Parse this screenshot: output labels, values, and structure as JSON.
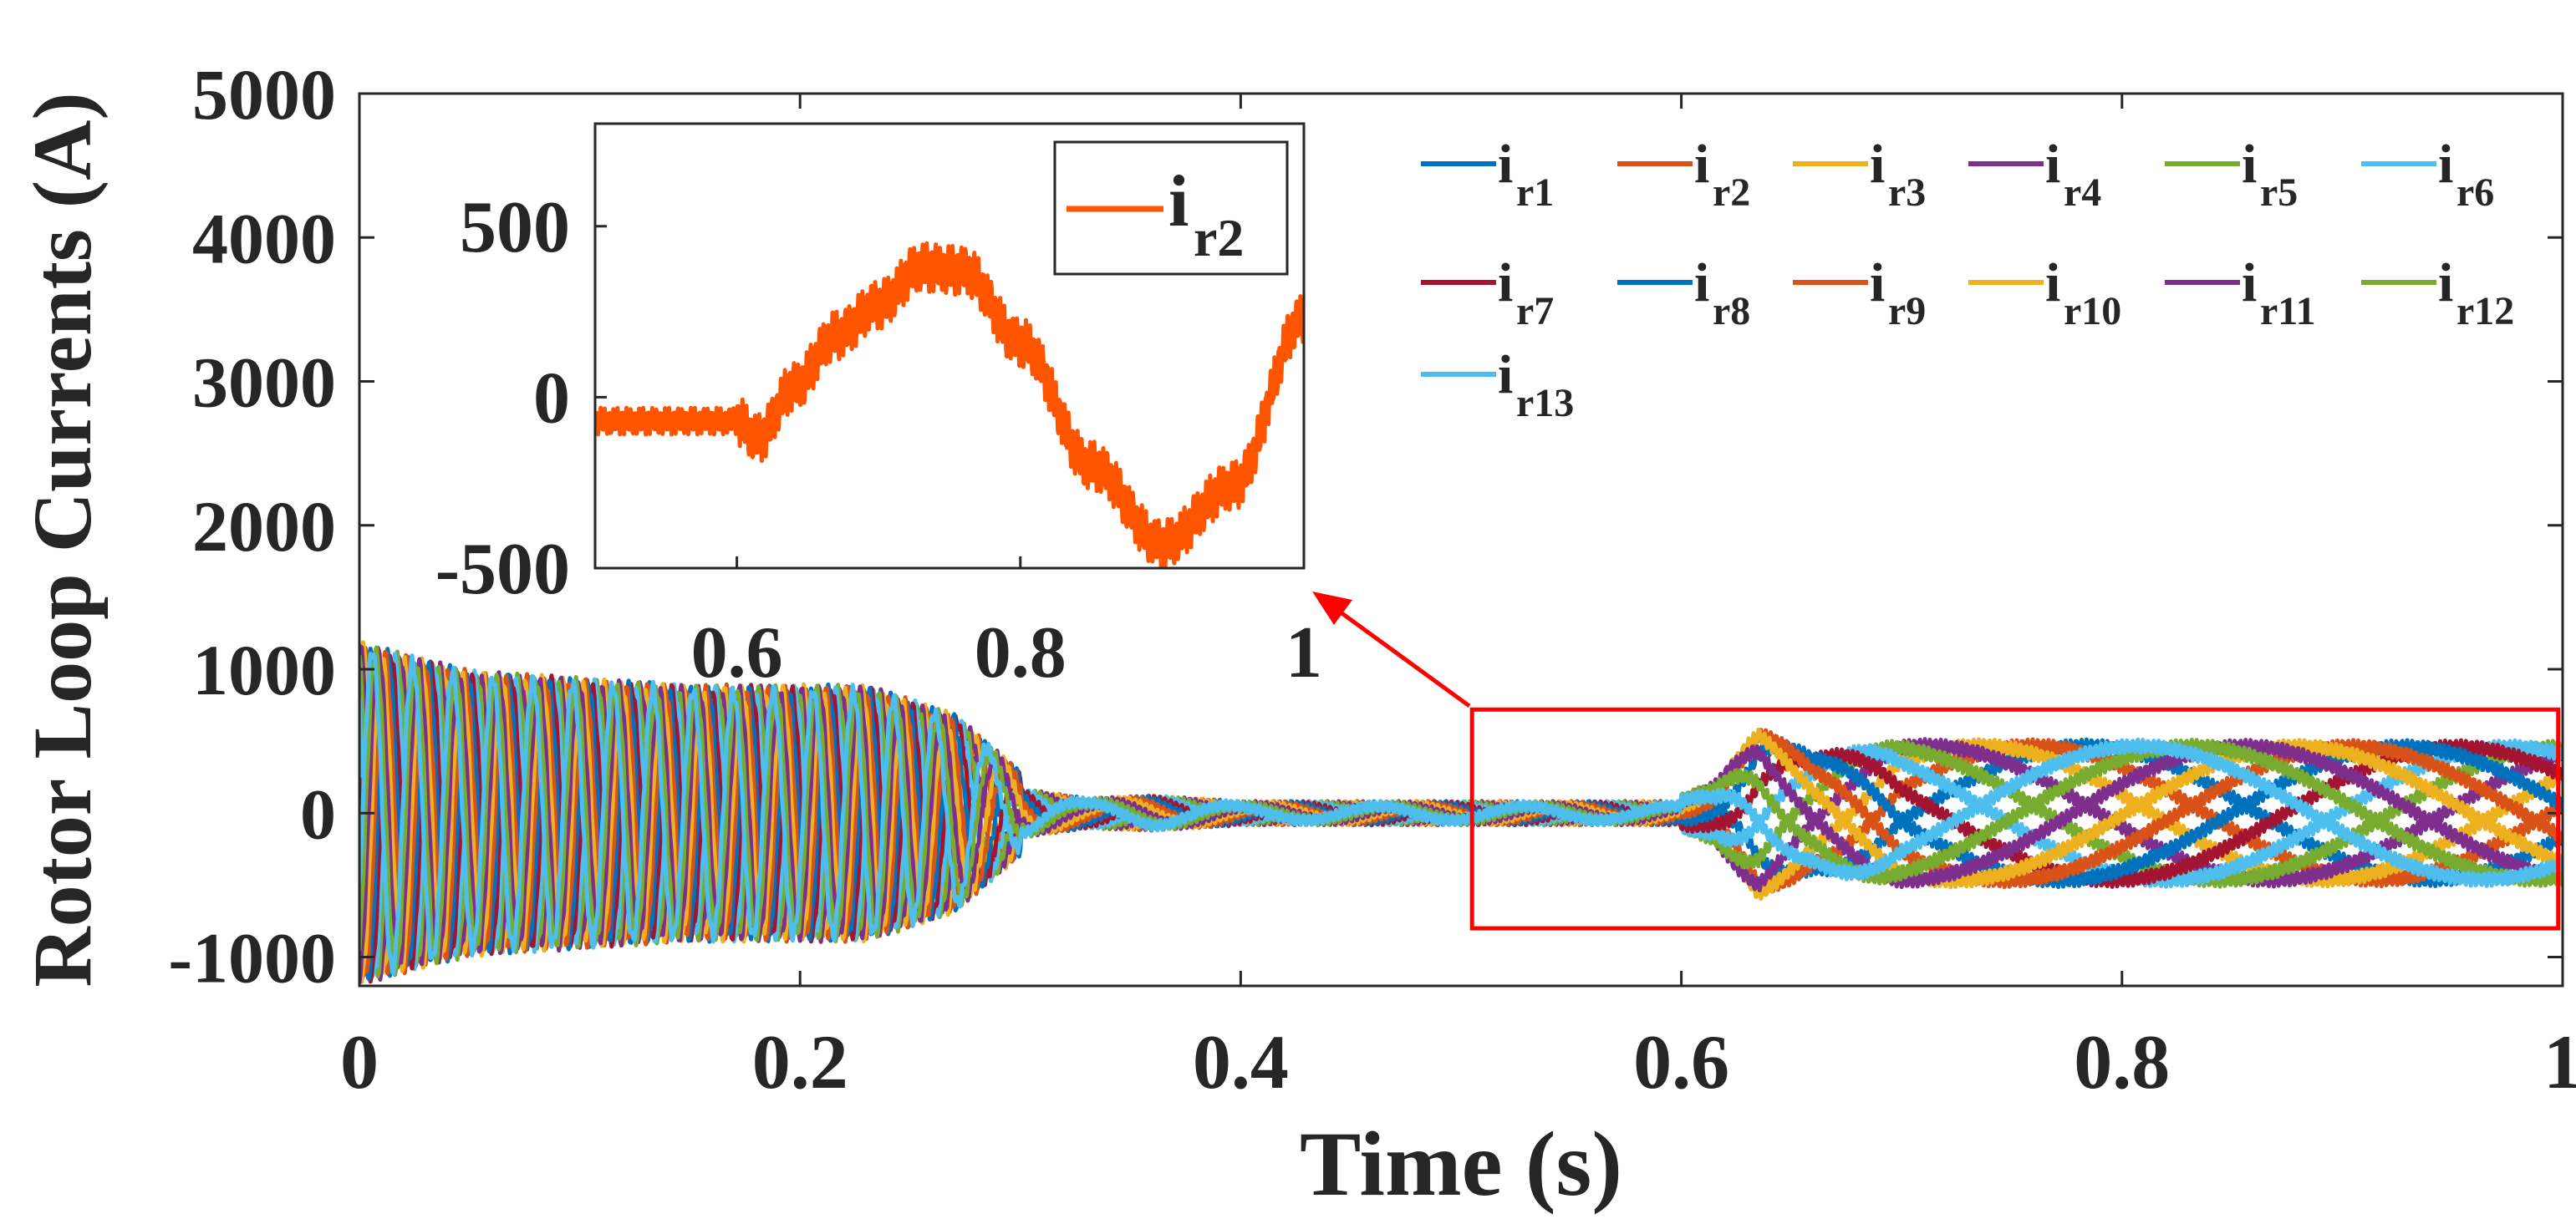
{
  "chart_data": [
    {
      "id": "main",
      "type": "line",
      "title": "",
      "xlabel": "Time (s)",
      "ylabel": "Rotor Loop Currents (A)",
      "xlim": [
        0,
        1
      ],
      "ylim": [
        -1200,
        5000
      ],
      "xticks": [
        0,
        0.2,
        0.4,
        0.6,
        0.8,
        1
      ],
      "xtick_labels": [
        "0",
        "0.2",
        "0.4",
        "0.6",
        "0.8",
        "1"
      ],
      "yticks": [
        -1000,
        0,
        1000,
        2000,
        3000,
        4000,
        5000
      ],
      "ytick_labels": [
        "-1000",
        "0",
        "1000",
        "2000",
        "3000",
        "4000",
        "5000"
      ],
      "grid": false,
      "legend_position": "top-right",
      "series_count": 13,
      "series": [
        {
          "name": "i",
          "subscript": "r1",
          "color": "#0072BD",
          "phase_index": 0
        },
        {
          "name": "i",
          "subscript": "r2",
          "color": "#D95319",
          "phase_index": 1
        },
        {
          "name": "i",
          "subscript": "r3",
          "color": "#EDB120",
          "phase_index": 2
        },
        {
          "name": "i",
          "subscript": "r4",
          "color": "#7E2F8E",
          "phase_index": 3
        },
        {
          "name": "i",
          "subscript": "r5",
          "color": "#77AC30",
          "phase_index": 4
        },
        {
          "name": "i",
          "subscript": "r6",
          "color": "#4DBEEE",
          "phase_index": 5
        },
        {
          "name": "i",
          "subscript": "r7",
          "color": "#A2142F",
          "phase_index": 6
        },
        {
          "name": "i",
          "subscript": "r8",
          "color": "#0072BD",
          "phase_index": 7
        },
        {
          "name": "i",
          "subscript": "r9",
          "color": "#D95319",
          "phase_index": 8
        },
        {
          "name": "i",
          "subscript": "r10",
          "color": "#EDB120",
          "phase_index": 9
        },
        {
          "name": "i",
          "subscript": "r11",
          "color": "#7E2F8E",
          "phase_index": 10
        },
        {
          "name": "i",
          "subscript": "r12",
          "color": "#77AC30",
          "phase_index": 11
        },
        {
          "name": "i",
          "subscript": "r13",
          "color": "#4DBEEE",
          "phase_index": 12
        }
      ],
      "envelope": [
        {
          "t": 0.0,
          "amp": 1150
        },
        {
          "t": 0.05,
          "amp": 950
        },
        {
          "t": 0.15,
          "amp": 850
        },
        {
          "t": 0.23,
          "amp": 850
        },
        {
          "t": 0.27,
          "amp": 650
        },
        {
          "t": 0.3,
          "amp": 250
        },
        {
          "t": 0.33,
          "amp": 130
        },
        {
          "t": 0.36,
          "amp": 160
        },
        {
          "t": 0.4,
          "amp": 90
        },
        {
          "t": 0.6,
          "amp": 90
        },
        {
          "t": 0.615,
          "amp": 180
        },
        {
          "t": 0.635,
          "amp": 560
        },
        {
          "t": 0.66,
          "amp": 380
        },
        {
          "t": 0.7,
          "amp": 470
        },
        {
          "t": 1.0,
          "amp": 460
        }
      ],
      "annotation": {
        "type": "zoom-box",
        "x_range": [
          0.505,
          0.998
        ],
        "y_range": [
          -800,
          720
        ],
        "color": "#FF0000",
        "arrow_points_to": "inset"
      }
    },
    {
      "id": "inset",
      "type": "line",
      "xlim": [
        0.5,
        1
      ],
      "ylim": [
        -500,
        800
      ],
      "xticks": [
        0.6,
        0.8,
        1
      ],
      "xtick_labels": [
        "0.6",
        "0.8",
        "1"
      ],
      "yticks": [
        -500,
        0,
        500
      ],
      "ytick_labels": [
        "-500",
        "0",
        "500"
      ],
      "legend_position": "top-right",
      "series": [
        {
          "name": "i",
          "subscript": "r2",
          "color": "#FF5500"
        }
      ],
      "shape_points": [
        {
          "t": 0.5,
          "v": -70
        },
        {
          "t": 0.6,
          "v": -70
        },
        {
          "t": 0.615,
          "v": -120
        },
        {
          "t": 0.64,
          "v": 30
        },
        {
          "t": 0.67,
          "v": 180
        },
        {
          "t": 0.7,
          "v": 270
        },
        {
          "t": 0.73,
          "v": 380
        },
        {
          "t": 0.76,
          "v": 370
        },
        {
          "t": 0.8,
          "v": 160
        },
        {
          "t": 0.85,
          "v": -200
        },
        {
          "t": 0.9,
          "v": -430
        },
        {
          "t": 0.95,
          "v": -260
        },
        {
          "t": 1.0,
          "v": 230
        }
      ],
      "ripple_amplitude": 55
    }
  ]
}
